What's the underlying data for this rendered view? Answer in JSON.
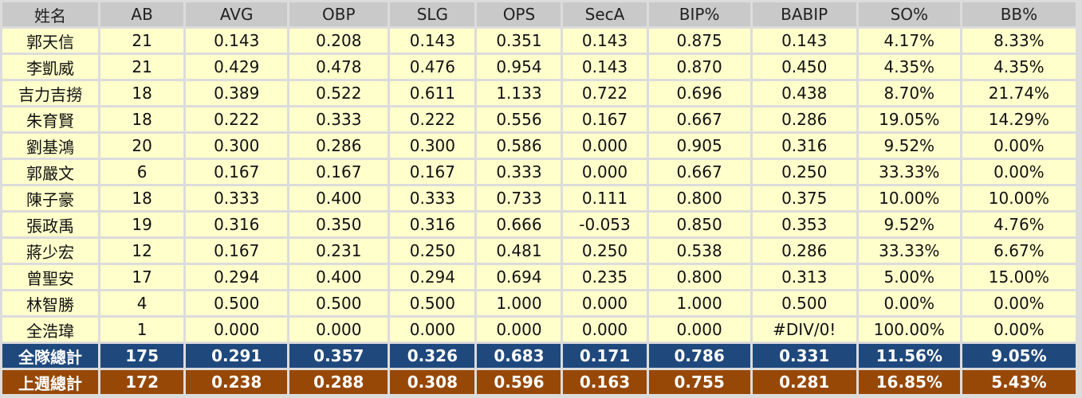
{
  "headers": [
    "姓名",
    "AB",
    "AVG",
    "OBP",
    "SLG",
    "OPS",
    "SecA",
    "BIP%",
    "BABIP",
    "SO%",
    "BB%"
  ],
  "rows": [
    [
      "郭天信",
      "21",
      "0.143",
      "0.208",
      "0.143",
      "0.351",
      "0.143",
      "0.875",
      "0.143",
      "4.17%",
      "8.33%"
    ],
    [
      "李凱威",
      "21",
      "0.429",
      "0.478",
      "0.476",
      "0.954",
      "0.143",
      "0.870",
      "0.450",
      "4.35%",
      "4.35%"
    ],
    [
      "吉力吉撈",
      "18",
      "0.389",
      "0.522",
      "0.611",
      "1.133",
      "0.722",
      "0.696",
      "0.438",
      "8.70%",
      "21.74%"
    ],
    [
      "朱育賢",
      "18",
      "0.222",
      "0.333",
      "0.222",
      "0.556",
      "0.167",
      "0.667",
      "0.286",
      "19.05%",
      "14.29%"
    ],
    [
      "劉基鴻",
      "20",
      "0.300",
      "0.286",
      "0.300",
      "0.586",
      "0.000",
      "0.905",
      "0.316",
      "9.52%",
      "0.00%"
    ],
    [
      "郭嚴文",
      "6",
      "0.167",
      "0.167",
      "0.167",
      "0.333",
      "0.000",
      "0.667",
      "0.250",
      "33.33%",
      "0.00%"
    ],
    [
      "陳子豪",
      "18",
      "0.333",
      "0.400",
      "0.333",
      "0.733",
      "0.111",
      "0.800",
      "0.375",
      "10.00%",
      "10.00%"
    ],
    [
      "張政禹",
      "19",
      "0.316",
      "0.350",
      "0.316",
      "0.666",
      "-0.053",
      "0.850",
      "0.353",
      "9.52%",
      "4.76%"
    ],
    [
      "蔣少宏",
      "12",
      "0.167",
      "0.231",
      "0.250",
      "0.481",
      "0.250",
      "0.538",
      "0.286",
      "33.33%",
      "6.67%"
    ],
    [
      "曾聖安",
      "17",
      "0.294",
      "0.400",
      "0.294",
      "0.694",
      "0.235",
      "0.800",
      "0.313",
      "5.00%",
      "15.00%"
    ],
    [
      "林智勝",
      "4",
      "0.500",
      "0.500",
      "0.500",
      "1.000",
      "0.000",
      "1.000",
      "0.500",
      "0.00%",
      "0.00%"
    ],
    [
      "全浩瑋",
      "1",
      "0.000",
      "0.000",
      "0.000",
      "0.000",
      "0.000",
      "0.000",
      "#DIV/0!",
      "100.00%",
      "0.00%"
    ]
  ],
  "team_total": [
    "全隊總計",
    "175",
    "0.291",
    "0.357",
    "0.326",
    "0.683",
    "0.171",
    "0.786",
    "0.331",
    "11.56%",
    "9.05%"
  ],
  "last_week_total": [
    "上週總計",
    "172",
    "0.238",
    "0.288",
    "0.308",
    "0.596",
    "0.163",
    "0.755",
    "0.281",
    "16.85%",
    "5.43%"
  ],
  "colors": {
    "header": "#c9c9c9",
    "body": "#ffffcc",
    "team_total": "#1f497d",
    "last_week_total": "#974806"
  }
}
